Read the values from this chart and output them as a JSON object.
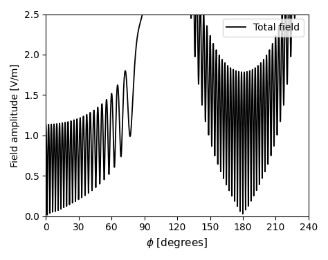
{
  "title": "",
  "xlabel": "$\\phi$ [degrees]",
  "ylabel": "Field amplitude [V/m]",
  "xlim": [
    0,
    240
  ],
  "ylim": [
    0,
    2.5
  ],
  "xticks": [
    0,
    30,
    60,
    90,
    120,
    150,
    180,
    210,
    240
  ],
  "yticks": [
    0,
    0.5,
    1.0,
    1.5,
    2.0,
    2.5
  ],
  "legend_label": "Total field",
  "line_color": "#000000",
  "line_width": 1.3,
  "background_color": "#ffffff"
}
